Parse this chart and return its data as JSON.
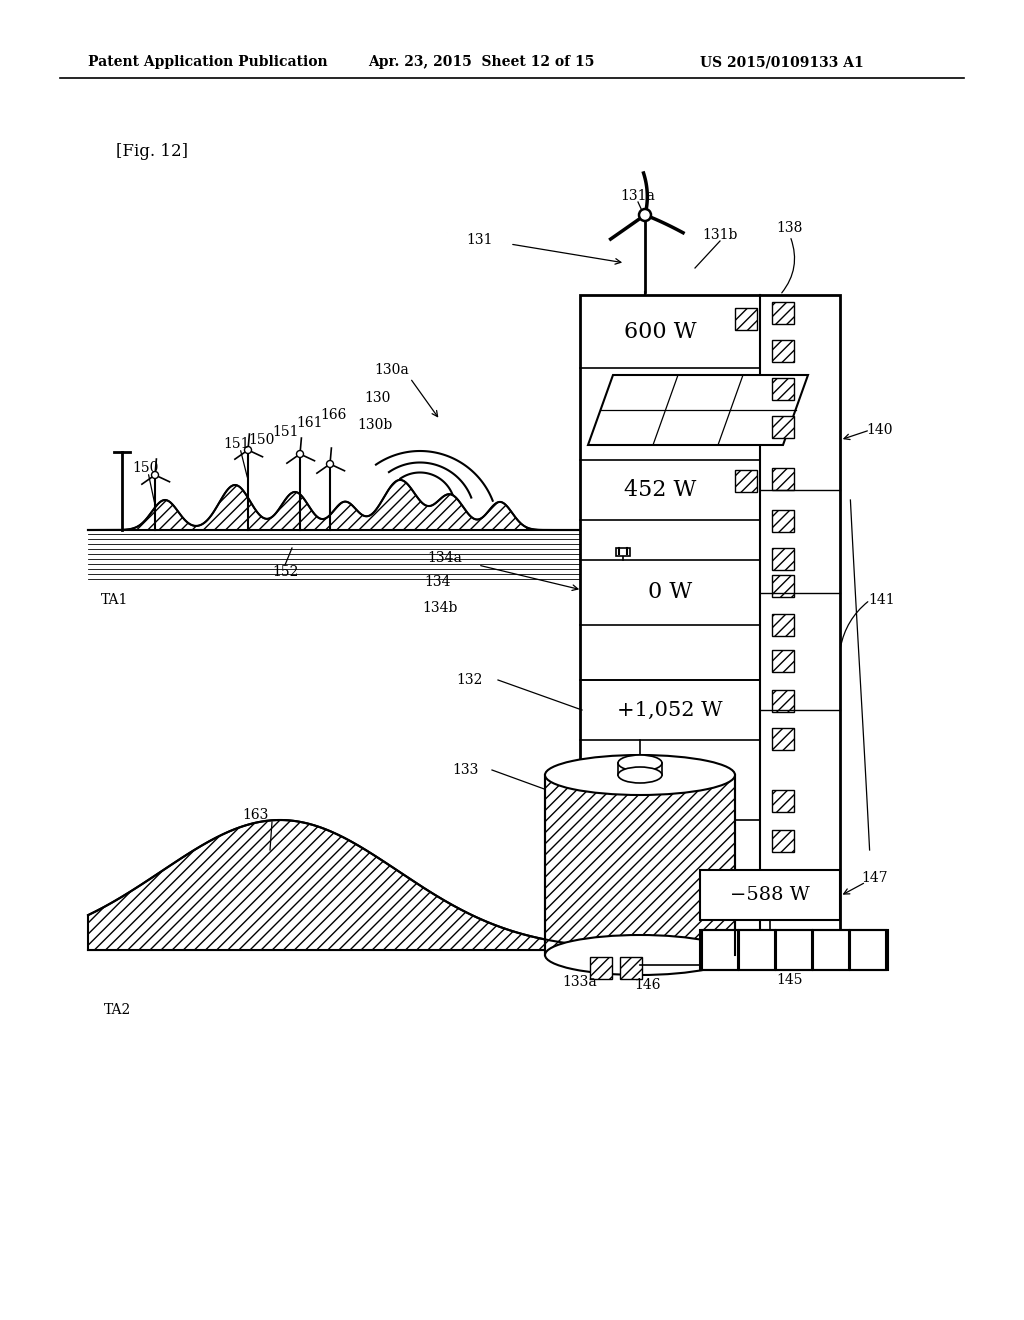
{
  "title_left": "Patent Application Publication",
  "title_mid": "Apr. 23, 2015  Sheet 12 of 15",
  "title_right": "US 2015/0109133 A1",
  "fig_label": "[Fig. 12]",
  "background": "#ffffff"
}
